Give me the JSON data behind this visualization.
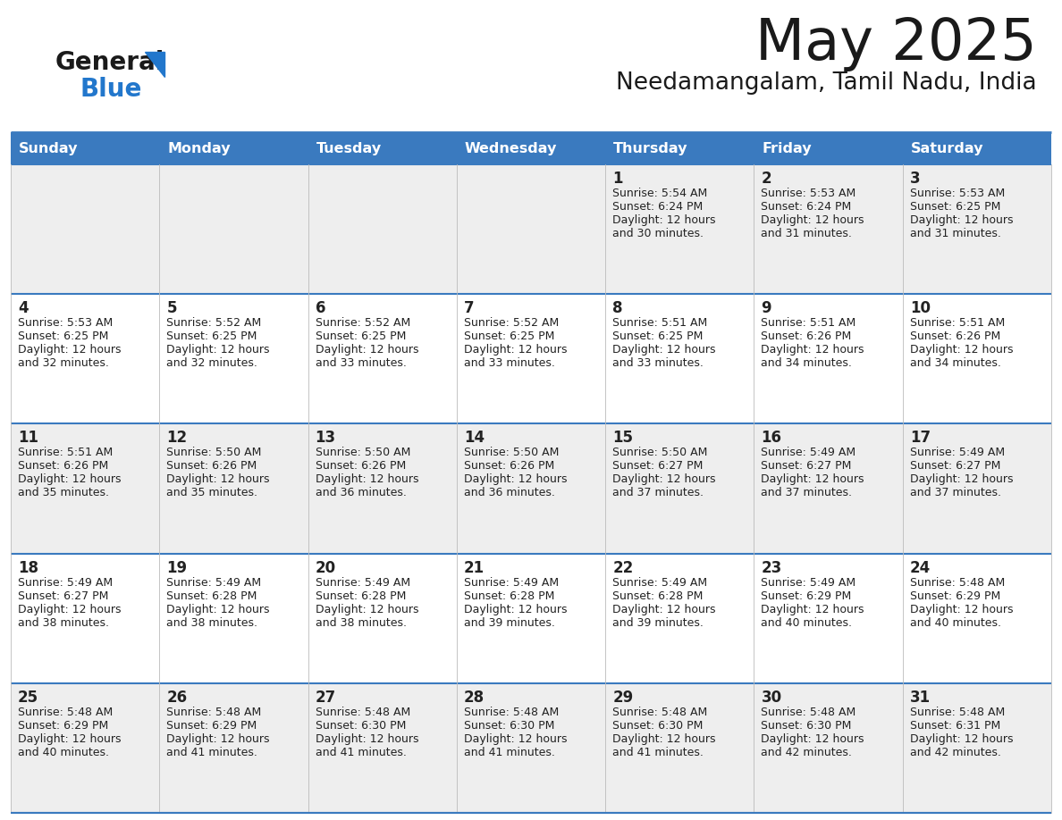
{
  "title": "May 2025",
  "subtitle": "Needamangalam, Tamil Nadu, India",
  "header_color": "#3a7abf",
  "header_text_color": "#ffffff",
  "bg_color": "#ffffff",
  "cell_bg_even": "#eeeeee",
  "cell_bg_odd": "#ffffff",
  "border_color": "#3a7abf",
  "day_names": [
    "Sunday",
    "Monday",
    "Tuesday",
    "Wednesday",
    "Thursday",
    "Friday",
    "Saturday"
  ],
  "weeks": [
    [
      {
        "day": "",
        "sunrise": "",
        "sunset": "",
        "daylight": ""
      },
      {
        "day": "",
        "sunrise": "",
        "sunset": "",
        "daylight": ""
      },
      {
        "day": "",
        "sunrise": "",
        "sunset": "",
        "daylight": ""
      },
      {
        "day": "",
        "sunrise": "",
        "sunset": "",
        "daylight": ""
      },
      {
        "day": "1",
        "sunrise": "5:54 AM",
        "sunset": "6:24 PM",
        "daylight": "12 hours\nand 30 minutes."
      },
      {
        "day": "2",
        "sunrise": "5:53 AM",
        "sunset": "6:24 PM",
        "daylight": "12 hours\nand 31 minutes."
      },
      {
        "day": "3",
        "sunrise": "5:53 AM",
        "sunset": "6:25 PM",
        "daylight": "12 hours\nand 31 minutes."
      }
    ],
    [
      {
        "day": "4",
        "sunrise": "5:53 AM",
        "sunset": "6:25 PM",
        "daylight": "12 hours\nand 32 minutes."
      },
      {
        "day": "5",
        "sunrise": "5:52 AM",
        "sunset": "6:25 PM",
        "daylight": "12 hours\nand 32 minutes."
      },
      {
        "day": "6",
        "sunrise": "5:52 AM",
        "sunset": "6:25 PM",
        "daylight": "12 hours\nand 33 minutes."
      },
      {
        "day": "7",
        "sunrise": "5:52 AM",
        "sunset": "6:25 PM",
        "daylight": "12 hours\nand 33 minutes."
      },
      {
        "day": "8",
        "sunrise": "5:51 AM",
        "sunset": "6:25 PM",
        "daylight": "12 hours\nand 33 minutes."
      },
      {
        "day": "9",
        "sunrise": "5:51 AM",
        "sunset": "6:26 PM",
        "daylight": "12 hours\nand 34 minutes."
      },
      {
        "day": "10",
        "sunrise": "5:51 AM",
        "sunset": "6:26 PM",
        "daylight": "12 hours\nand 34 minutes."
      }
    ],
    [
      {
        "day": "11",
        "sunrise": "5:51 AM",
        "sunset": "6:26 PM",
        "daylight": "12 hours\nand 35 minutes."
      },
      {
        "day": "12",
        "sunrise": "5:50 AM",
        "sunset": "6:26 PM",
        "daylight": "12 hours\nand 35 minutes."
      },
      {
        "day": "13",
        "sunrise": "5:50 AM",
        "sunset": "6:26 PM",
        "daylight": "12 hours\nand 36 minutes."
      },
      {
        "day": "14",
        "sunrise": "5:50 AM",
        "sunset": "6:26 PM",
        "daylight": "12 hours\nand 36 minutes."
      },
      {
        "day": "15",
        "sunrise": "5:50 AM",
        "sunset": "6:27 PM",
        "daylight": "12 hours\nand 37 minutes."
      },
      {
        "day": "16",
        "sunrise": "5:49 AM",
        "sunset": "6:27 PM",
        "daylight": "12 hours\nand 37 minutes."
      },
      {
        "day": "17",
        "sunrise": "5:49 AM",
        "sunset": "6:27 PM",
        "daylight": "12 hours\nand 37 minutes."
      }
    ],
    [
      {
        "day": "18",
        "sunrise": "5:49 AM",
        "sunset": "6:27 PM",
        "daylight": "12 hours\nand 38 minutes."
      },
      {
        "day": "19",
        "sunrise": "5:49 AM",
        "sunset": "6:28 PM",
        "daylight": "12 hours\nand 38 minutes."
      },
      {
        "day": "20",
        "sunrise": "5:49 AM",
        "sunset": "6:28 PM",
        "daylight": "12 hours\nand 38 minutes."
      },
      {
        "day": "21",
        "sunrise": "5:49 AM",
        "sunset": "6:28 PM",
        "daylight": "12 hours\nand 39 minutes."
      },
      {
        "day": "22",
        "sunrise": "5:49 AM",
        "sunset": "6:28 PM",
        "daylight": "12 hours\nand 39 minutes."
      },
      {
        "day": "23",
        "sunrise": "5:49 AM",
        "sunset": "6:29 PM",
        "daylight": "12 hours\nand 40 minutes."
      },
      {
        "day": "24",
        "sunrise": "5:48 AM",
        "sunset": "6:29 PM",
        "daylight": "12 hours\nand 40 minutes."
      }
    ],
    [
      {
        "day": "25",
        "sunrise": "5:48 AM",
        "sunset": "6:29 PM",
        "daylight": "12 hours\nand 40 minutes."
      },
      {
        "day": "26",
        "sunrise": "5:48 AM",
        "sunset": "6:29 PM",
        "daylight": "12 hours\nand 41 minutes."
      },
      {
        "day": "27",
        "sunrise": "5:48 AM",
        "sunset": "6:30 PM",
        "daylight": "12 hours\nand 41 minutes."
      },
      {
        "day": "28",
        "sunrise": "5:48 AM",
        "sunset": "6:30 PM",
        "daylight": "12 hours\nand 41 minutes."
      },
      {
        "day": "29",
        "sunrise": "5:48 AM",
        "sunset": "6:30 PM",
        "daylight": "12 hours\nand 41 minutes."
      },
      {
        "day": "30",
        "sunrise": "5:48 AM",
        "sunset": "6:30 PM",
        "daylight": "12 hours\nand 42 minutes."
      },
      {
        "day": "31",
        "sunrise": "5:48 AM",
        "sunset": "6:31 PM",
        "daylight": "12 hours\nand 42 minutes."
      }
    ]
  ],
  "logo_color_general": "#1a1a1a",
  "logo_color_blue": "#2277cc",
  "logo_triangle_color": "#2277cc",
  "title_color": "#1a1a1a",
  "subtitle_color": "#1a1a1a"
}
